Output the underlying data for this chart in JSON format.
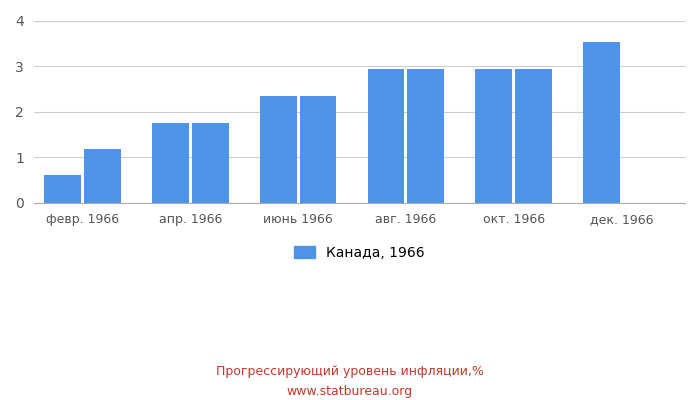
{
  "x_tick_labels": [
    "февр. 1966",
    "апр. 1966",
    "июнь 1966",
    "авг. 1966",
    "окт. 1966",
    "дек. 1966"
  ],
  "values": [
    0.61,
    1.19,
    1.76,
    1.76,
    2.35,
    2.35,
    2.94,
    2.94,
    2.94,
    2.94,
    3.53
  ],
  "bar_color": "#4d94e8",
  "ylim": [
    0,
    4.0
  ],
  "yticks": [
    0,
    1,
    2,
    3,
    4
  ],
  "legend_label": "Канада, 1966",
  "title_line1": "Прогрессирующий уровень инфляции,%",
  "title_line2": "www.statbureau.org",
  "title_color": "#c0392b",
  "background_color": "#ffffff",
  "grid_color": "#cccccc"
}
